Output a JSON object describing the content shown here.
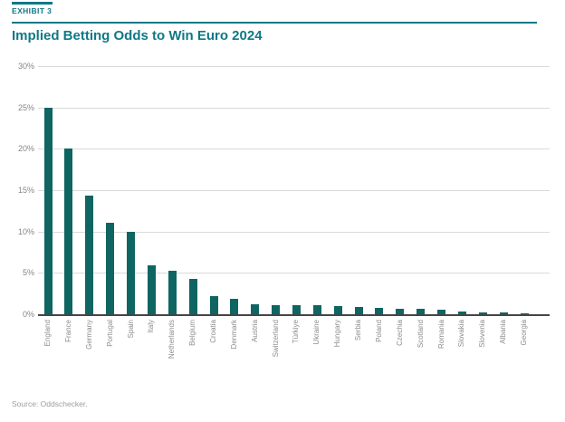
{
  "header": {
    "exhibit_label": "EXHIBIT 3",
    "title": "Implied Betting Odds to Win Euro 2024",
    "accent_color": "#0f7886"
  },
  "chart_data": {
    "type": "bar",
    "title": "Implied Betting Odds to Win Euro 2024",
    "categories": [
      "England",
      "France",
      "Germany",
      "Portugal",
      "Spain",
      "Italy",
      "Netherlands",
      "Belgium",
      "Croatia",
      "Denmark",
      "Austria",
      "Switzerland",
      "Türkiye",
      "Ukraine",
      "Hungary",
      "Serbia",
      "Poland",
      "Czechia",
      "Scotland",
      "Romania",
      "Slovakia",
      "Slovenia",
      "Albania",
      "Georgia"
    ],
    "values": [
      25,
      20,
      14.3,
      11.1,
      10,
      5.9,
      5.3,
      4.3,
      2.2,
      1.9,
      1.2,
      1.1,
      1.1,
      1.1,
      1.0,
      0.9,
      0.8,
      0.7,
      0.65,
      0.5,
      0.3,
      0.25,
      0.2,
      0.15
    ],
    "xlabel": "",
    "ylabel": "",
    "ylim": [
      0,
      30
    ],
    "ytick_labels": [
      "30%",
      "25%",
      "20%",
      "15%",
      "10%",
      "5%",
      "0%"
    ],
    "ytick_values": [
      30,
      25,
      20,
      15,
      10,
      5,
      0
    ],
    "grid": true,
    "legend": "none",
    "bar_color": "#0e6562",
    "gridline_color": "#dadada",
    "axis_color": "#454547"
  },
  "footer": {
    "source": "Source: Oddschecker."
  }
}
